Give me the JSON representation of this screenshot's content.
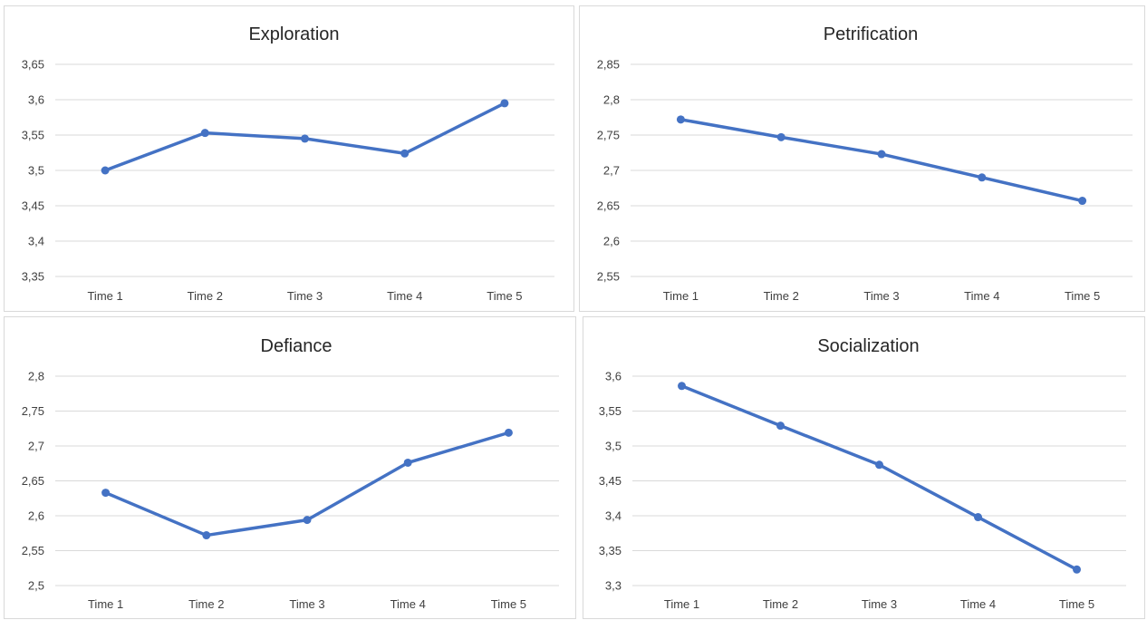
{
  "colors": {
    "line": "#4472C4",
    "grid": "#d9d9d9",
    "text": "#404040"
  },
  "chart_data": [
    {
      "type": "line",
      "title": "Exploration",
      "categories": [
        "Time 1",
        "Time 2",
        "Time 3",
        "Time 4",
        "Time 5"
      ],
      "values": [
        3.5,
        3.553,
        3.545,
        3.524,
        3.595
      ],
      "ylim": [
        3.35,
        3.65
      ],
      "yticks": [
        "3,35",
        "3,4",
        "3,45",
        "3,5",
        "3,55",
        "3,6",
        "3,65"
      ],
      "grid": true
    },
    {
      "type": "line",
      "title": "Petrification",
      "categories": [
        "Time 1",
        "Time 2",
        "Time 3",
        "Time 4",
        "Time 5"
      ],
      "values": [
        2.772,
        2.747,
        2.723,
        2.69,
        2.657
      ],
      "ylim": [
        2.55,
        2.85
      ],
      "yticks": [
        "2,55",
        "2,6",
        "2,65",
        "2,7",
        "2,75",
        "2,8",
        "2,85"
      ],
      "grid": true
    },
    {
      "type": "line",
      "title": "Defiance",
      "categories": [
        "Time 1",
        "Time 2",
        "Time 3",
        "Time 4",
        "Time 5"
      ],
      "values": [
        2.633,
        2.572,
        2.594,
        2.676,
        2.719
      ],
      "ylim": [
        2.5,
        2.8
      ],
      "yticks": [
        "2,5",
        "2,55",
        "2,6",
        "2,65",
        "2,7",
        "2,75",
        "2,8"
      ],
      "grid": true
    },
    {
      "type": "line",
      "title": "Socialization",
      "categories": [
        "Time 1",
        "Time 2",
        "Time 3",
        "Time 4",
        "Time 5"
      ],
      "values": [
        3.586,
        3.529,
        3.473,
        3.398,
        3.323
      ],
      "ylim": [
        3.3,
        3.6
      ],
      "yticks": [
        "3,3",
        "3,35",
        "3,4",
        "3,45",
        "3,5",
        "3,55",
        "3,6"
      ],
      "grid": true
    }
  ]
}
